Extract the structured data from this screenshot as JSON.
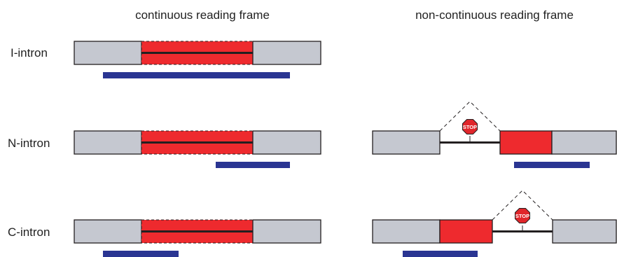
{
  "columns": {
    "left_title": "continuous reading frame",
    "right_title": "non-continuous reading frame"
  },
  "rows": {
    "i_intron": "I-intron",
    "n_intron": "N-intron",
    "c_intron": "C-intron"
  },
  "stop_sign": {
    "label": "STOP"
  },
  "colors": {
    "exon_gray": "#c5c8d0",
    "intein_red": "#ee2a2e",
    "bar_blue": "#2a3592",
    "outline": "#231f20",
    "stop_red": "#e0262b"
  }
}
